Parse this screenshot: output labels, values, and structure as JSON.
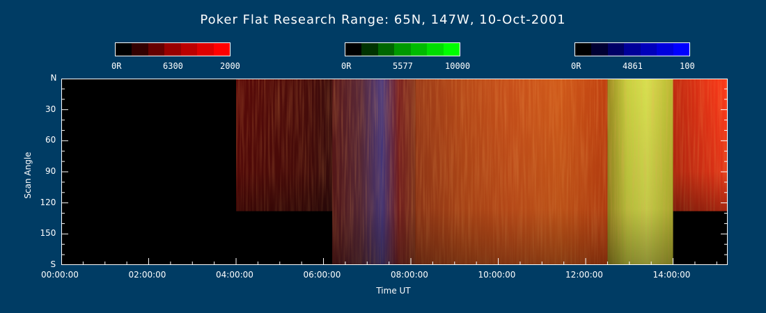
{
  "chart_data": {
    "type": "heatmap",
    "title": "Poker Flat Research Range: 65N, 147W, 10-Oct-2001",
    "xlabel": "Time UT",
    "ylabel": "Scan Angle",
    "x_ticks": [
      "00:00:00",
      "02:00:00",
      "04:00:00",
      "06:00:00",
      "08:00:00",
      "10:00:00",
      "12:00:00",
      "14:00:00"
    ],
    "x_tick_hours": [
      0,
      2,
      4,
      6,
      8,
      10,
      12,
      14
    ],
    "xlim_hours": [
      0,
      15.25
    ],
    "y_ticks": [
      "N",
      "30",
      "60",
      "90",
      "120",
      "150",
      "S"
    ],
    "y_tick_values": [
      0,
      30,
      60,
      90,
      120,
      150,
      180
    ],
    "ylim": [
      0,
      180
    ],
    "colorbars": [
      {
        "name": "6300",
        "min_label": "0R",
        "mid_label": "6300",
        "max_label": "2000",
        "color": "#ff0000",
        "segments": [
          "#000000",
          "#330000",
          "#660000",
          "#990000",
          "#bb0000",
          "#dd0000",
          "#ff0000"
        ]
      },
      {
        "name": "5577",
        "min_label": "0R",
        "mid_label": "5577",
        "max_label": "10000",
        "color": "#00ff00",
        "segments": [
          "#000000",
          "#003300",
          "#006600",
          "#009900",
          "#00bb00",
          "#00dd00",
          "#00ff00"
        ]
      },
      {
        "name": "4861",
        "min_label": "0R",
        "mid_label": "4861",
        "max_label": "100",
        "color": "#0000ff",
        "segments": [
          "#000000",
          "#000033",
          "#000066",
          "#000099",
          "#0000bb",
          "#0000dd",
          "#0000ff"
        ]
      }
    ],
    "data_regions": [
      {
        "t_start": 4.0,
        "t_end": 6.2,
        "scan_start": 0,
        "scan_end": 128,
        "dominant": "dark-red"
      },
      {
        "t_start": 6.2,
        "t_end": 8.1,
        "scan_start": 0,
        "scan_end": 180,
        "dominant": "red-blue"
      },
      {
        "t_start": 8.1,
        "t_end": 12.5,
        "scan_start": 0,
        "scan_end": 180,
        "dominant": "red-orange"
      },
      {
        "t_start": 12.5,
        "t_end": 14.0,
        "scan_start": 0,
        "scan_end": 180,
        "dominant": "yellow-green"
      },
      {
        "t_start": 14.0,
        "t_end": 15.25,
        "scan_start": 0,
        "scan_end": 128,
        "dominant": "red"
      }
    ]
  }
}
